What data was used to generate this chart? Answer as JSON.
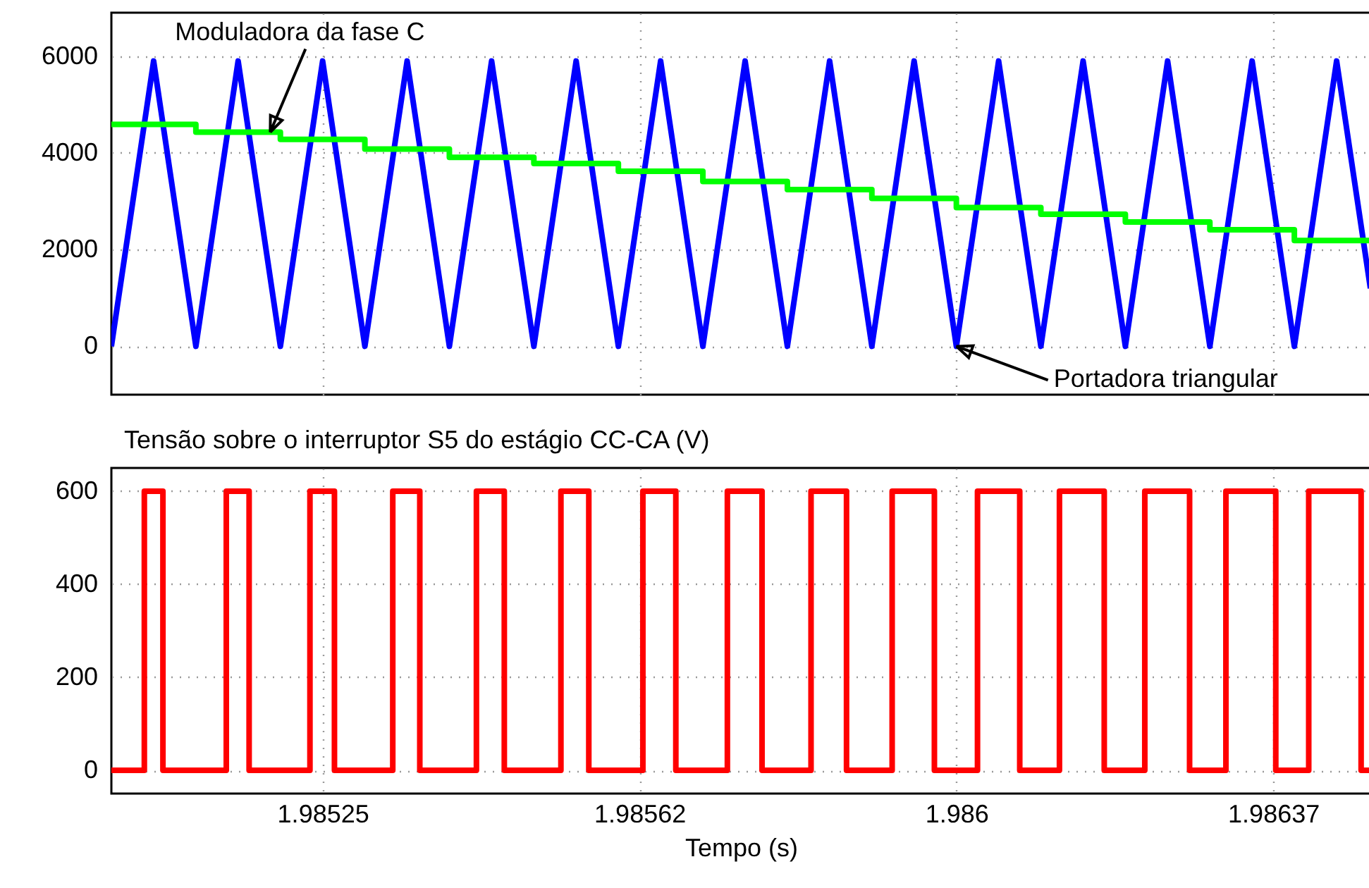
{
  "chart_data": [
    {
      "type": "line",
      "xlim": [
        1.985,
        1.98649
      ],
      "ylim": [
        -1000,
        6900
      ],
      "yticks": [
        0,
        2000,
        4000,
        6000
      ],
      "xticks": [
        {
          "value": 1.98525,
          "label": null
        },
        {
          "value": 1.985625,
          "label": null
        },
        {
          "value": 1.986,
          "label": null
        },
        {
          "value": 1.986375,
          "label": null
        }
      ],
      "tick_labels": "y",
      "grid": true,
      "series": [
        {
          "type": "line",
          "color": "#0000ff",
          "x": [
            1.985,
            1.98505,
            1.9851,
            1.98515,
            1.9852,
            1.98525,
            1.9853,
            1.98535,
            1.9854,
            1.98545,
            1.9855,
            1.98555,
            1.9856,
            1.98565,
            1.9857,
            1.98575,
            1.9858,
            1.98585,
            1.9859,
            1.98595,
            1.986,
            1.98605,
            1.9861,
            1.98615,
            1.9862,
            1.98625,
            1.9863,
            1.98635,
            1.9864,
            1.98645,
            1.98649
          ],
          "values": [
            0,
            5900,
            0,
            5900,
            0,
            5900,
            0,
            5900,
            0,
            5900,
            0,
            5900,
            0,
            5900,
            0,
            5900,
            0,
            5900,
            0,
            5900,
            0,
            5900,
            0,
            5900,
            0,
            5900,
            0,
            5900,
            0,
            5900,
            1200
          ]
        },
        {
          "type": "step",
          "color": "#00ff00",
          "x": [
            1.985,
            1.9851,
            1.9852,
            1.9853,
            1.9854,
            1.9855,
            1.9856,
            1.9857,
            1.9858,
            1.9859,
            1.986,
            1.9861,
            1.9862,
            1.9863,
            1.9864,
            1.98649
          ],
          "values": [
            4590,
            4430,
            4280,
            4080,
            3910,
            3780,
            3620,
            3410,
            3240,
            3060,
            2870,
            2730,
            2570,
            2410,
            2190,
            2190
          ]
        }
      ],
      "annotations": [
        {
          "text": "Moduladora da fase C",
          "x": 1.985188,
          "y": 4430
        },
        {
          "text": "Portadora triangular",
          "x": 1.986,
          "y": 0
        }
      ]
    },
    {
      "type": "step",
      "title": "Tensão sobre o interruptor S5 do estágio CC-CA (V)",
      "xlabel": "Tempo (s)",
      "xlim": [
        1.985,
        1.98649
      ],
      "ylim": [
        -50,
        650
      ],
      "yticks": [
        0,
        200,
        400,
        600
      ],
      "xticks": [
        1.98525,
        {
          "value": 1.985625,
          "label": "1.98562"
        },
        1.986,
        {
          "value": 1.986375,
          "label": "1.98637"
        }
      ],
      "grid": true,
      "series": [
        {
          "color": "#ff0000",
          "x": [
            1.985,
            1.985039,
            1.985061,
            1.985136,
            1.985163,
            1.985235,
            1.985264,
            1.985333,
            1.985365,
            1.985432,
            1.985465,
            1.985532,
            1.985565,
            1.985629,
            1.985668,
            1.985729,
            1.98577,
            1.985828,
            1.98587,
            1.985924,
            1.985974,
            1.986025,
            1.986075,
            1.986122,
            1.986175,
            1.986223,
            1.986276,
            1.986319,
            1.986378,
            1.986417,
            1.986479,
            1.98649
          ],
          "values": [
            0,
            600,
            0,
            600,
            0,
            600,
            0,
            600,
            0,
            600,
            0,
            600,
            0,
            600,
            0,
            600,
            0,
            600,
            0,
            600,
            0,
            600,
            0,
            600,
            0,
            600,
            0,
            600,
            0,
            600,
            0,
            0
          ]
        }
      ]
    }
  ]
}
